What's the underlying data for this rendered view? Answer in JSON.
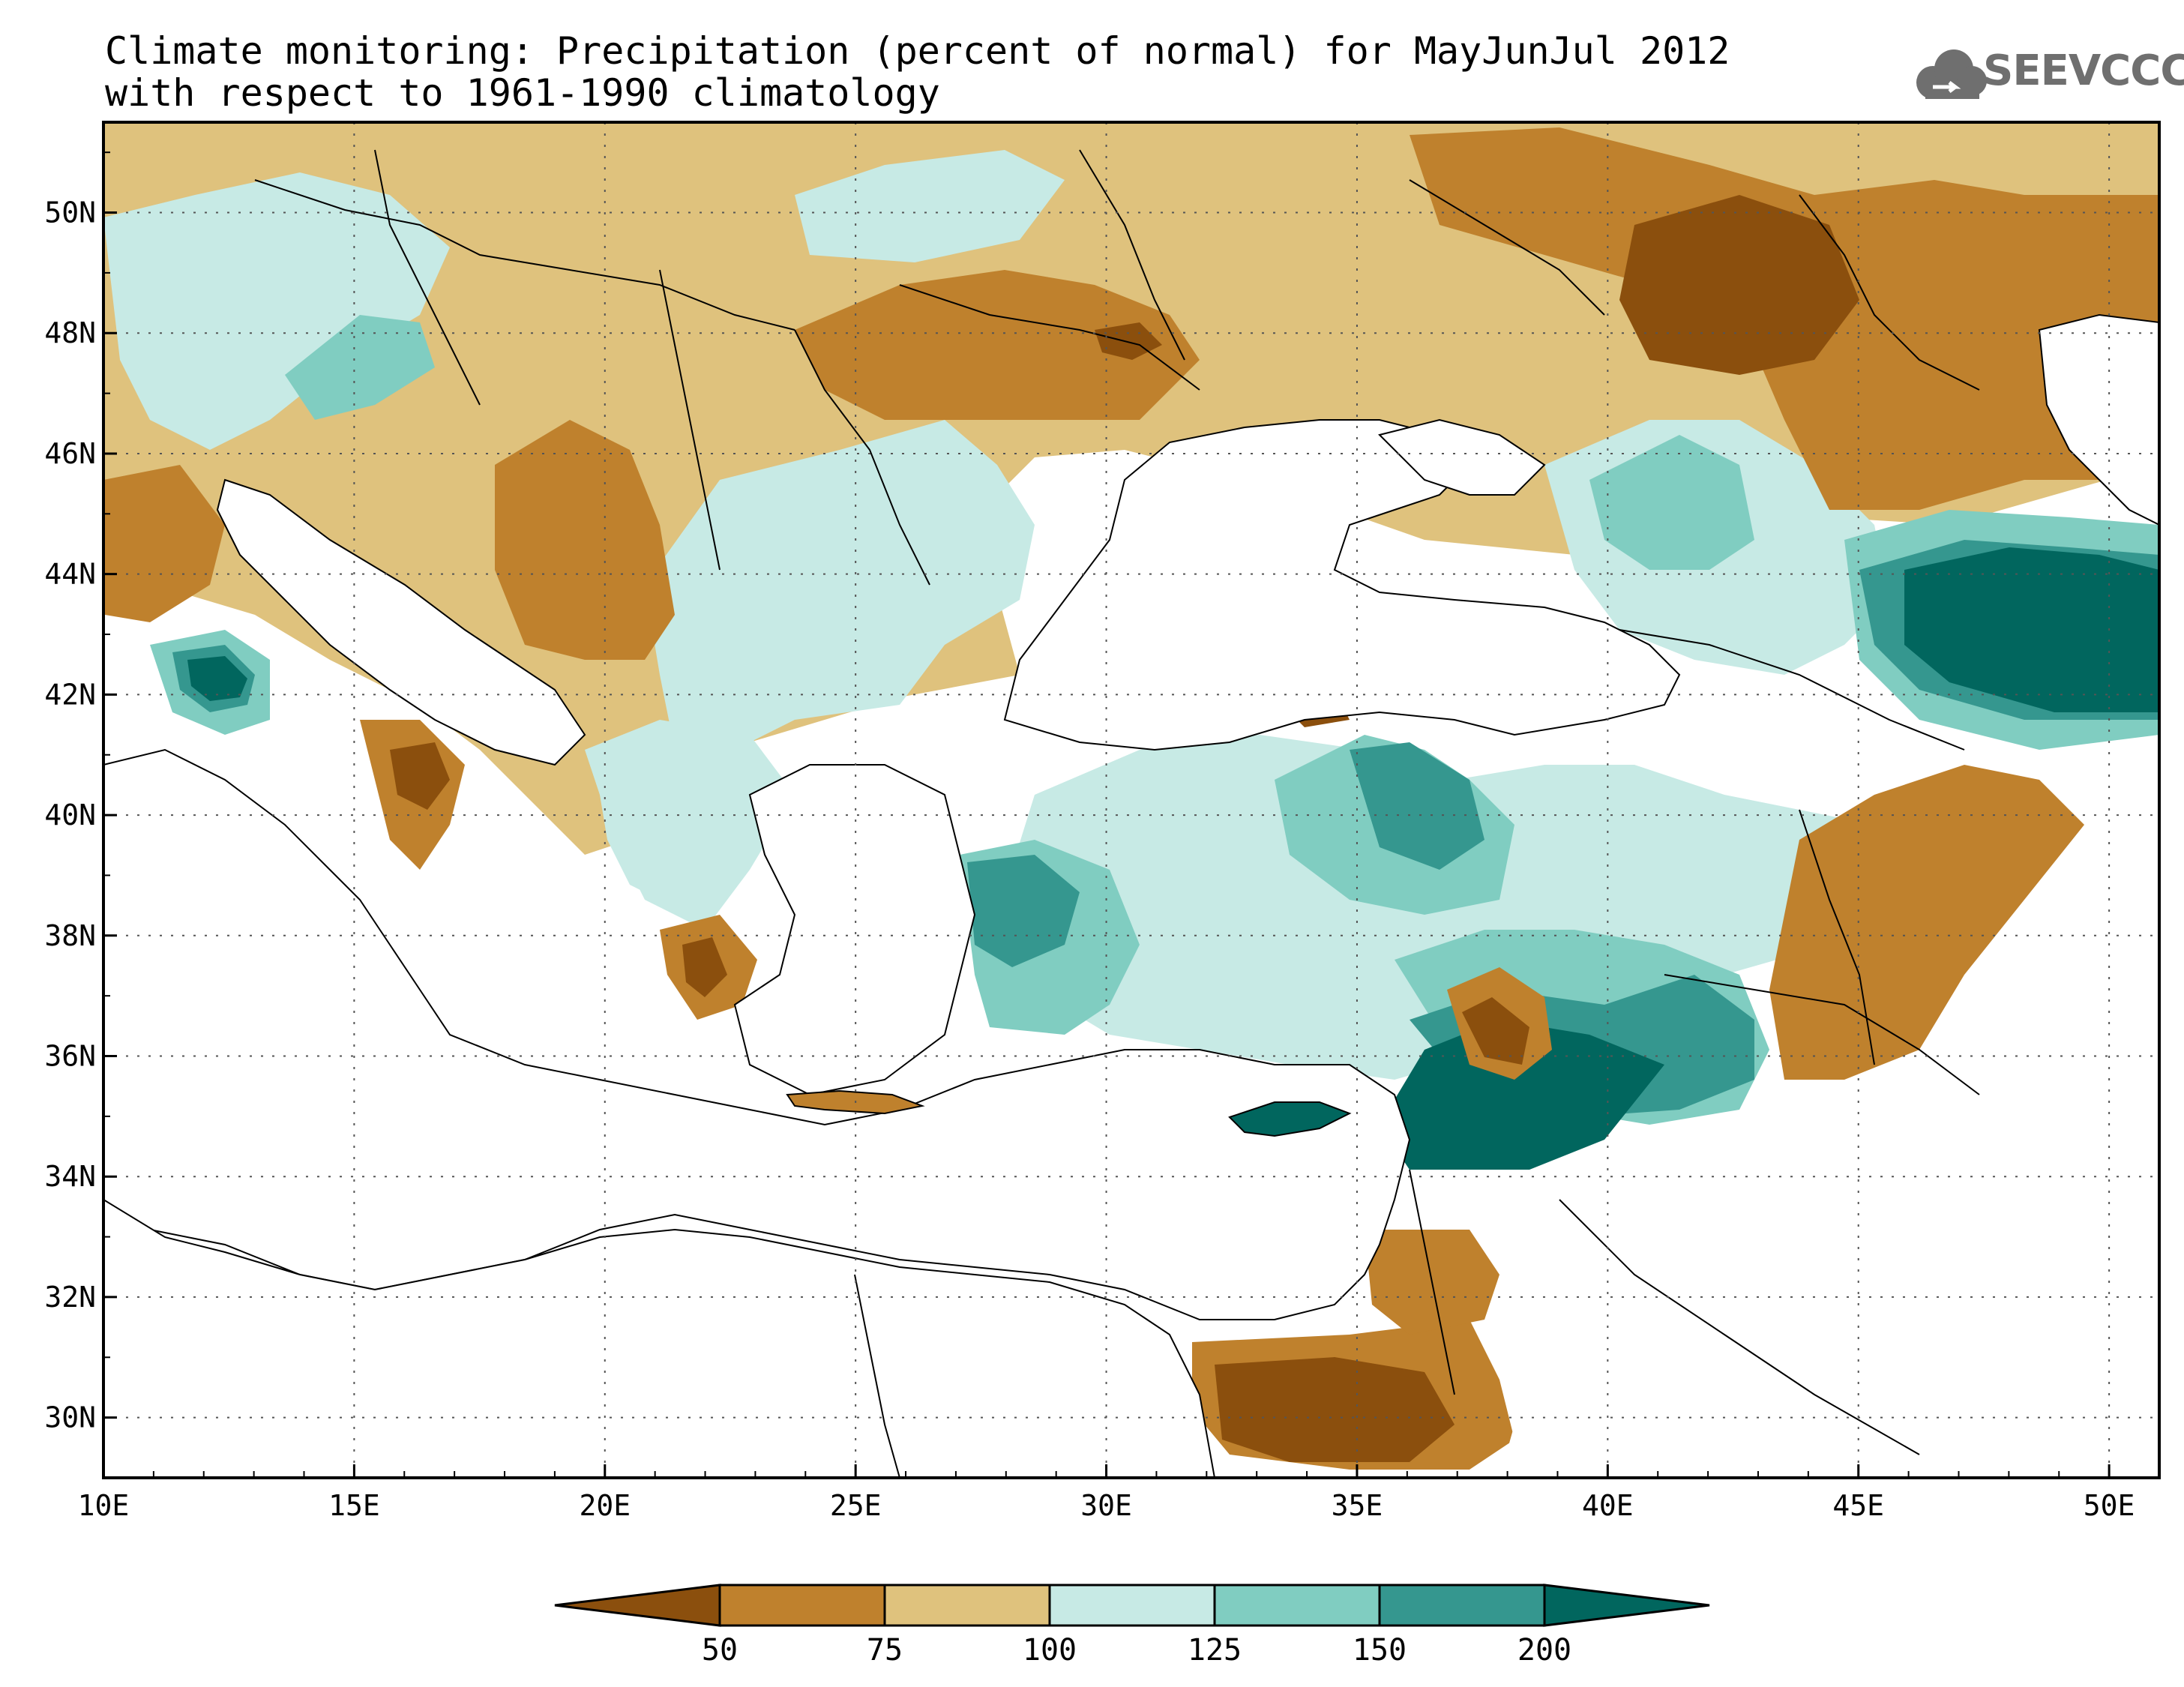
{
  "title": {
    "line1": "Climate monitoring: Precipitation (percent of normal) for MayJunJul 2012",
    "line2": "with respect to 1961-1990 climatology"
  },
  "logo": {
    "text": "SEEVCCC",
    "icon": "cloud-icon",
    "color": "#6f6f6f"
  },
  "map": {
    "lon_range": [
      10,
      51
    ],
    "lat_range": [
      29,
      51.5
    ],
    "lon_ticks": [
      "10E",
      "15E",
      "20E",
      "25E",
      "30E",
      "35E",
      "40E",
      "45E",
      "50E"
    ],
    "lat_ticks": [
      "50N",
      "48N",
      "46N",
      "44N",
      "42N",
      "40N",
      "38N",
      "36N",
      "34N",
      "32N",
      "30N"
    ],
    "grid": "dotted"
  },
  "colorbar": {
    "labels": [
      "50",
      "75",
      "100",
      "125",
      "150",
      "200"
    ],
    "colors": [
      "#8b4f0d",
      "#bf812d",
      "#dfc27d",
      "#c7eae5",
      "#80cdc1",
      "#35978f",
      "#01665e"
    ],
    "orientation": "horizontal",
    "extend": "both"
  },
  "chart_data": {
    "type": "heatmap",
    "variable": "Precipitation (percent of normal)",
    "period": "MayJunJul 2012",
    "reference": "1961-1990 climatology",
    "categories": [
      "<50",
      "50-75",
      "75-100",
      "100-125",
      "125-150",
      "150-200",
      ">200"
    ],
    "levels": [
      50,
      75,
      100,
      125,
      150,
      200
    ],
    "colors": [
      "#8b4f0d",
      "#bf812d",
      "#dfc27d",
      "#c7eae5",
      "#80cdc1",
      "#35978f",
      "#01665e"
    ],
    "xlim": [
      10,
      51
    ],
    "ylim": [
      29,
      51.5
    ]
  }
}
